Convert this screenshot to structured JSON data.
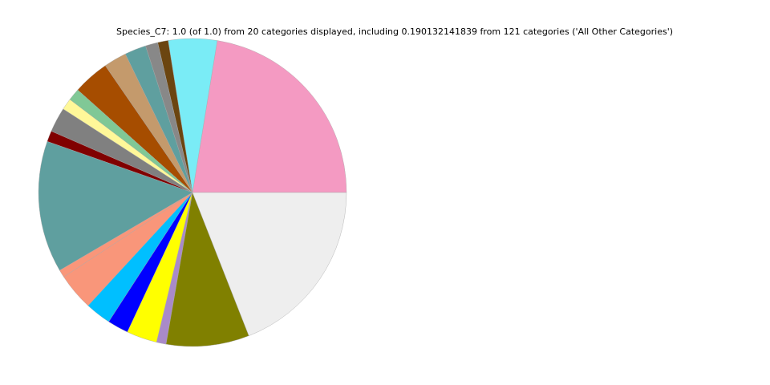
{
  "chart_data": {
    "type": "pie",
    "title": "Species_C7: 1.0 (of 1.0) from 20 categories displayed, including 0.190132141839 from 121 categories ('All Other Categories')",
    "start_angle_deg": 0,
    "direction": "counterclockwise",
    "values": [
      0.224,
      0.051,
      0.011,
      0.013,
      0.0225,
      0.024,
      0.038,
      0.0128,
      0.012,
      0.026,
      0.0114,
      0.138,
      0.008,
      0.039,
      0.027,
      0.022,
      0.032,
      0.01,
      0.087,
      0.190132141839
    ],
    "colors": [
      "#f49ac2",
      "#7aecf6",
      "#6b4510",
      "#888888",
      "#5f9f9f",
      "#c49a6c",
      "#a64d00",
      "#80c896",
      "#fff899",
      "#808080",
      "#800000",
      "#5f9f9f",
      "#f9967a",
      "#f9967a",
      "#00bfff",
      "#0000ff",
      "#ffff00",
      "#a98ac9",
      "#808000",
      "#eeeeee"
    ],
    "edge_color": "#aaaaaa"
  }
}
